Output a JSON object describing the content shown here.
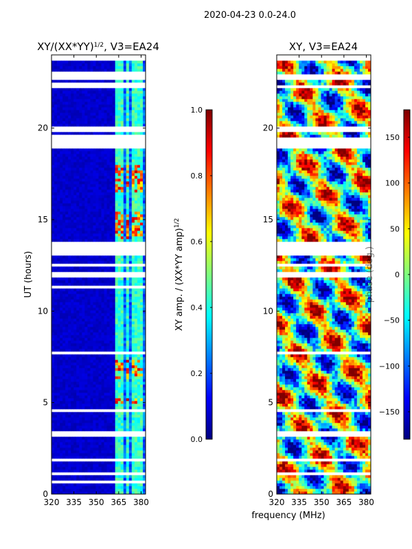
{
  "figure_title": "2020-04-23 0.0-24.0",
  "colors": {
    "gap": "#ffffff",
    "frame": "#000000",
    "jet": [
      "#00007f",
      "#0000ff",
      "#007fff",
      "#00ffff",
      "#7fff7f",
      "#ffff00",
      "#ff7f00",
      "#ff0000",
      "#7f0000"
    ]
  },
  "chart_data": [
    {
      "type": "heatmap",
      "title_main": "XY/(XX*YY)",
      "title_sup": "1/2",
      "title_tail": ", V3=EA24",
      "xlabel": "",
      "ylabel": "UT (hours)",
      "xlim": [
        320,
        383
      ],
      "ylim": [
        0,
        24
      ],
      "xticks": [
        320,
        335,
        350,
        365,
        380
      ],
      "yticks": [
        0,
        5,
        10,
        15,
        20
      ],
      "ytick_labels": [
        "0",
        "5",
        "10",
        "15",
        "20"
      ],
      "colorbar": {
        "label_main": "XY amp. / (XX*YY amp)",
        "label_sup": "1/2",
        "range": [
          0.0,
          1.0
        ],
        "ticks": [
          0.0,
          0.2,
          0.4,
          0.6,
          0.8,
          1.0
        ],
        "tick_labels": [
          "0.0",
          "0.2",
          "0.4",
          "0.6",
          "0.8",
          "1.0"
        ]
      },
      "gaps_hours": [
        [
          23.7,
          24.0
        ],
        [
          22.7,
          23.1
        ],
        [
          22.2,
          22.5
        ],
        [
          19.8,
          20.1
        ],
        [
          18.9,
          19.6
        ],
        [
          13.0,
          13.8
        ],
        [
          12.5,
          12.6
        ],
        [
          11.9,
          12.1
        ],
        [
          11.3,
          11.4
        ],
        [
          7.6,
          7.8
        ],
        [
          6.1,
          6.2
        ],
        [
          4.5,
          4.7
        ],
        [
          3.2,
          3.4
        ],
        [
          1.8,
          2.0
        ],
        [
          1.0,
          1.2
        ],
        [
          0.6,
          0.7
        ]
      ],
      "bright_channels_MHz": [
        364.5,
        367.5,
        371.5,
        375.5,
        379.5
      ],
      "bright_hours": [
        [
          14.0,
          15.5
        ],
        [
          16.5,
          18.0
        ],
        [
          6.3,
          7.4
        ],
        [
          4.9,
          5.2
        ]
      ],
      "background_level": 0.05,
      "channel_level": 0.35,
      "peak_level": 0.85
    },
    {
      "type": "heatmap",
      "title_main": "XY, V3=EA24",
      "xlabel": "frequency (MHz)",
      "ylabel": "",
      "xlim": [
        320,
        383
      ],
      "ylim": [
        0,
        24
      ],
      "xticks": [
        320,
        335,
        350,
        365,
        380
      ],
      "yticks": [
        0,
        5,
        10,
        15,
        20
      ],
      "ytick_labels": [
        "0",
        "5",
        "10",
        "15",
        "20"
      ],
      "colorbar": {
        "label_main": "phase (deg.)",
        "range": [
          -180,
          180
        ],
        "ticks": [
          -150,
          -100,
          -50,
          0,
          50,
          100,
          150
        ],
        "tick_labels": [
          "−150",
          "−100",
          "−50",
          "0",
          "50",
          "100",
          "150"
        ]
      },
      "gaps_hours": [
        [
          23.7,
          24.0
        ],
        [
          22.6,
          23.0
        ],
        [
          22.2,
          22.4
        ],
        [
          19.8,
          20.1
        ],
        [
          18.9,
          19.5
        ],
        [
          13.0,
          13.8
        ],
        [
          12.5,
          12.6
        ],
        [
          11.9,
          12.1
        ],
        [
          7.6,
          7.8
        ],
        [
          4.5,
          4.7
        ],
        [
          3.2,
          3.4
        ],
        [
          1.8,
          2.0
        ],
        [
          1.0,
          1.2
        ]
      ],
      "phase_range_deg": [
        -180,
        180
      ]
    }
  ]
}
